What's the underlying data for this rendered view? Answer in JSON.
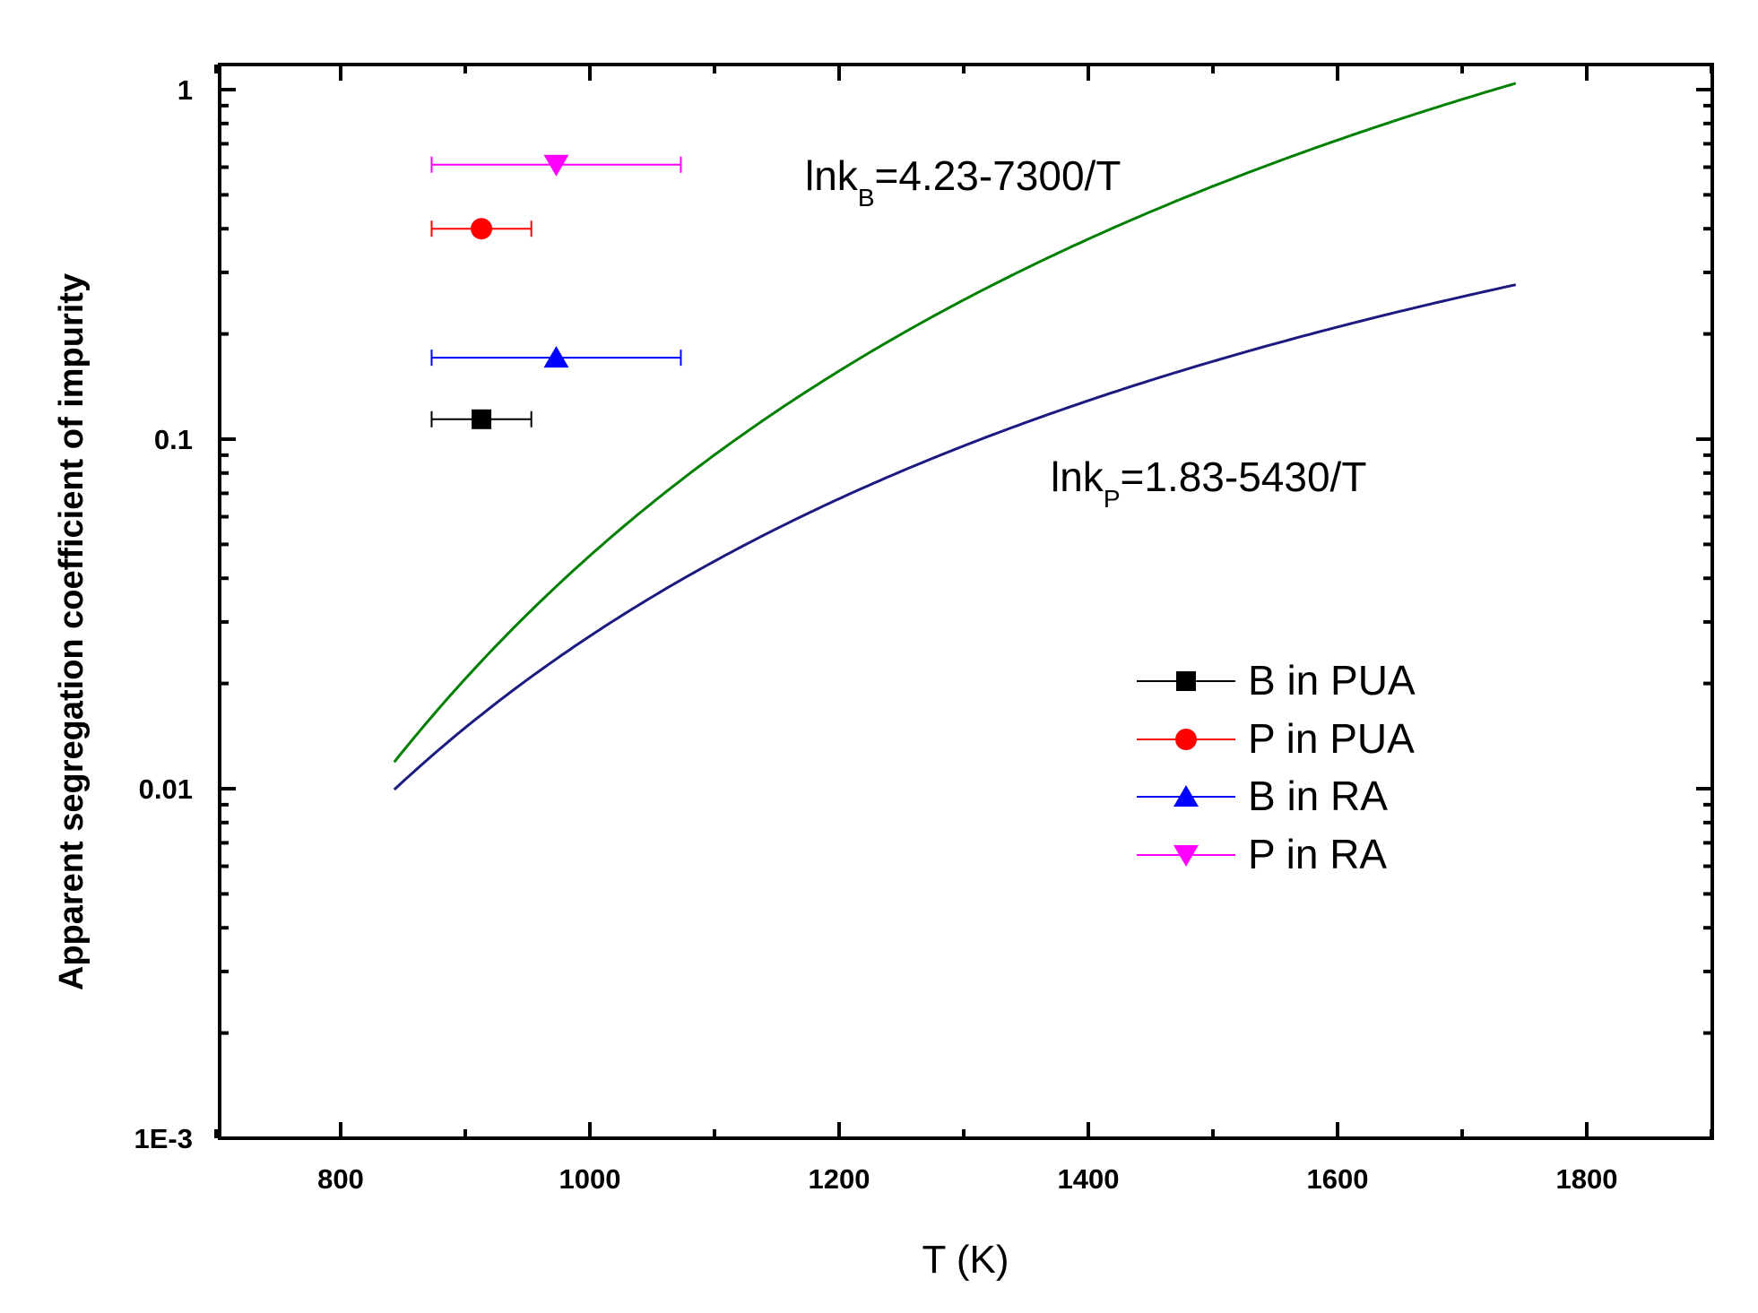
{
  "chart_data": {
    "type": "scatter",
    "title": "",
    "xlabel": "T (K)",
    "ylabel": "Apparent segregation coefficient of impurity",
    "xlim": [
      700,
      1900
    ],
    "ylim": [
      0.001,
      1.2
    ],
    "yscale": "log",
    "x_ticks": [
      800,
      1000,
      1200,
      1400,
      1600,
      1800
    ],
    "x_tick_labels": [
      "800",
      "1000",
      "1200",
      "1400",
      "1600",
      "1800"
    ],
    "y_ticks": [
      0.001,
      0.01,
      0.1,
      1
    ],
    "y_tick_labels": [
      "1E-3",
      "0.01",
      "0.1",
      "1"
    ],
    "series": [
      {
        "name": "B in PUA",
        "color": "#000000",
        "marker": "square",
        "x": 913,
        "y": 0.114,
        "xerr": [
          873,
          953
        ]
      },
      {
        "name": "P in PUA",
        "color": "#ff0000",
        "marker": "circle",
        "x": 913,
        "y": 0.4,
        "xerr": [
          873,
          953
        ]
      },
      {
        "name": "B in RA",
        "color": "#0000ff",
        "marker": "triangle-up",
        "x": 973,
        "y": 0.171,
        "xerr": [
          873,
          1073
        ]
      },
      {
        "name": "P in RA",
        "color": "#ff00ff",
        "marker": "triangle-down",
        "x": 973,
        "y": 0.61,
        "xerr": [
          873,
          1073
        ]
      }
    ],
    "curves": [
      {
        "name": "kB fit",
        "color": "#008000",
        "a": 4.23,
        "b": 7300,
        "x_range": [
          843,
          1743
        ]
      },
      {
        "name": "kP fit",
        "color": "#1a1a80",
        "a": 1.83,
        "b": 5430,
        "x_range": [
          843,
          1743
        ]
      }
    ],
    "annotations": [
      {
        "main": "lnk",
        "sub": "B",
        "rest": "=4.23-7300/T"
      },
      {
        "main": "lnk",
        "sub": "P",
        "rest": "=1.83-5430/T"
      }
    ],
    "legend_position": "center-right"
  }
}
